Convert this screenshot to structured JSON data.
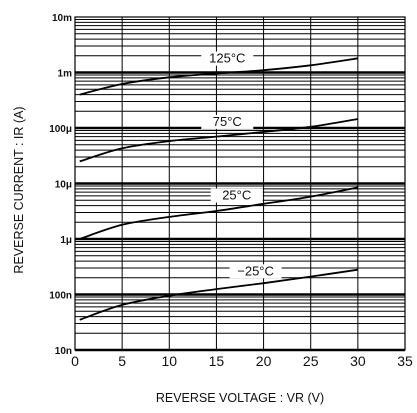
{
  "chart_data": {
    "type": "line",
    "title": "",
    "xlabel": "REVERSE  VOLTAGE : VR (V)",
    "ylabel": "REVERSE  CURRENT : IR (A)",
    "xlim": [
      0,
      35
    ],
    "ylim": [
      1e-08,
      0.01
    ],
    "y_scale": "log",
    "grid": true,
    "x_ticks": [
      0,
      5,
      10,
      15,
      20,
      25,
      30,
      35
    ],
    "x_tick_labels": [
      "0",
      "5",
      "10",
      "15",
      "20",
      "25",
      "30",
      "35"
    ],
    "y_ticks": [
      0.01,
      0.001,
      0.0001,
      1e-05,
      1e-06,
      1e-07,
      1e-08
    ],
    "y_tick_labels": [
      "10m",
      "1m",
      "100μ",
      "10μ",
      "1μ",
      "100n",
      "10n"
    ],
    "series": [
      {
        "name": "125°C",
        "x": [
          0.5,
          5,
          10,
          15,
          20,
          25,
          30
        ],
        "y": [
          0.0004,
          0.00062,
          0.00082,
          0.00096,
          0.0011,
          0.00135,
          0.0018
        ]
      },
      {
        "name": "75°C",
        "x": [
          0.5,
          5,
          10,
          15,
          20,
          25,
          30
        ],
        "y": [
          2.5e-05,
          4.3e-05,
          5.8e-05,
          7e-05,
          8.5e-05,
          0.000105,
          0.000145
        ]
      },
      {
        "name": "25°C",
        "x": [
          0.5,
          5,
          10,
          15,
          20,
          25,
          30
        ],
        "y": [
          1e-06,
          1.8e-06,
          2.5e-06,
          3.2e-06,
          4.3e-06,
          5.8e-06,
          8.5e-06
        ]
      },
      {
        "name": "−25°C",
        "x": [
          0.5,
          5,
          10,
          15,
          20,
          25,
          30
        ],
        "y": [
          3.5e-08,
          6.5e-08,
          9.5e-08,
          1.25e-07,
          1.6e-07,
          2.1e-07,
          2.8e-07
        ]
      }
    ]
  }
}
